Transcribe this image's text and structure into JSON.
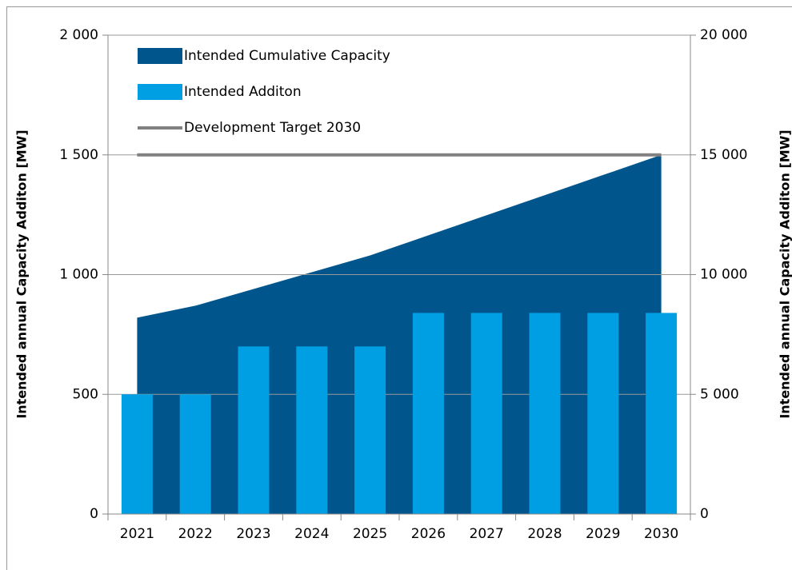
{
  "chart_data": {
    "type": "combo",
    "categories": [
      "2021",
      "2022",
      "2023",
      "2024",
      "2025",
      "2026",
      "2027",
      "2028",
      "2029",
      "2030"
    ],
    "series": [
      {
        "name": "Intended Cumulative Capacity",
        "type": "area",
        "axis": "y2",
        "color": "#00568c",
        "values": [
          8200,
          8700,
          9400,
          10100,
          10800,
          11640,
          12480,
          13320,
          14160,
          15000
        ]
      },
      {
        "name": "Intended Additon",
        "type": "bar",
        "color": "#009fe3",
        "values": [
          500,
          500,
          700,
          700,
          700,
          840,
          840,
          840,
          840,
          840
        ]
      },
      {
        "name": "Development Target 2030",
        "type": "line",
        "color": "#808080",
        "values": [
          1500,
          1500,
          1500,
          1500,
          1500,
          1500,
          1500,
          1500,
          1500,
          1500
        ]
      }
    ],
    "ylabel": "Intended annual Capacity Additon [MW]",
    "y2label": "Intended annual Capacity Additon [MW]",
    "ylim": [
      0,
      2000
    ],
    "yticks": [
      0,
      500,
      {
        "value": 1000,
        "label": "1 000"
      },
      {
        "value": 1500,
        "label": "1 500"
      },
      {
        "value": 2000,
        "label": "2 000"
      }
    ],
    "y2lim": [
      0,
      20000
    ],
    "y2ticks": [
      0,
      {
        "value": 5000,
        "label": "5 000"
      },
      {
        "value": 10000,
        "label": "10 000"
      },
      {
        "value": 15000,
        "label": "15 000"
      },
      {
        "value": 20000,
        "label": "20 000"
      }
    ],
    "grid": true,
    "legend": "top-left"
  }
}
